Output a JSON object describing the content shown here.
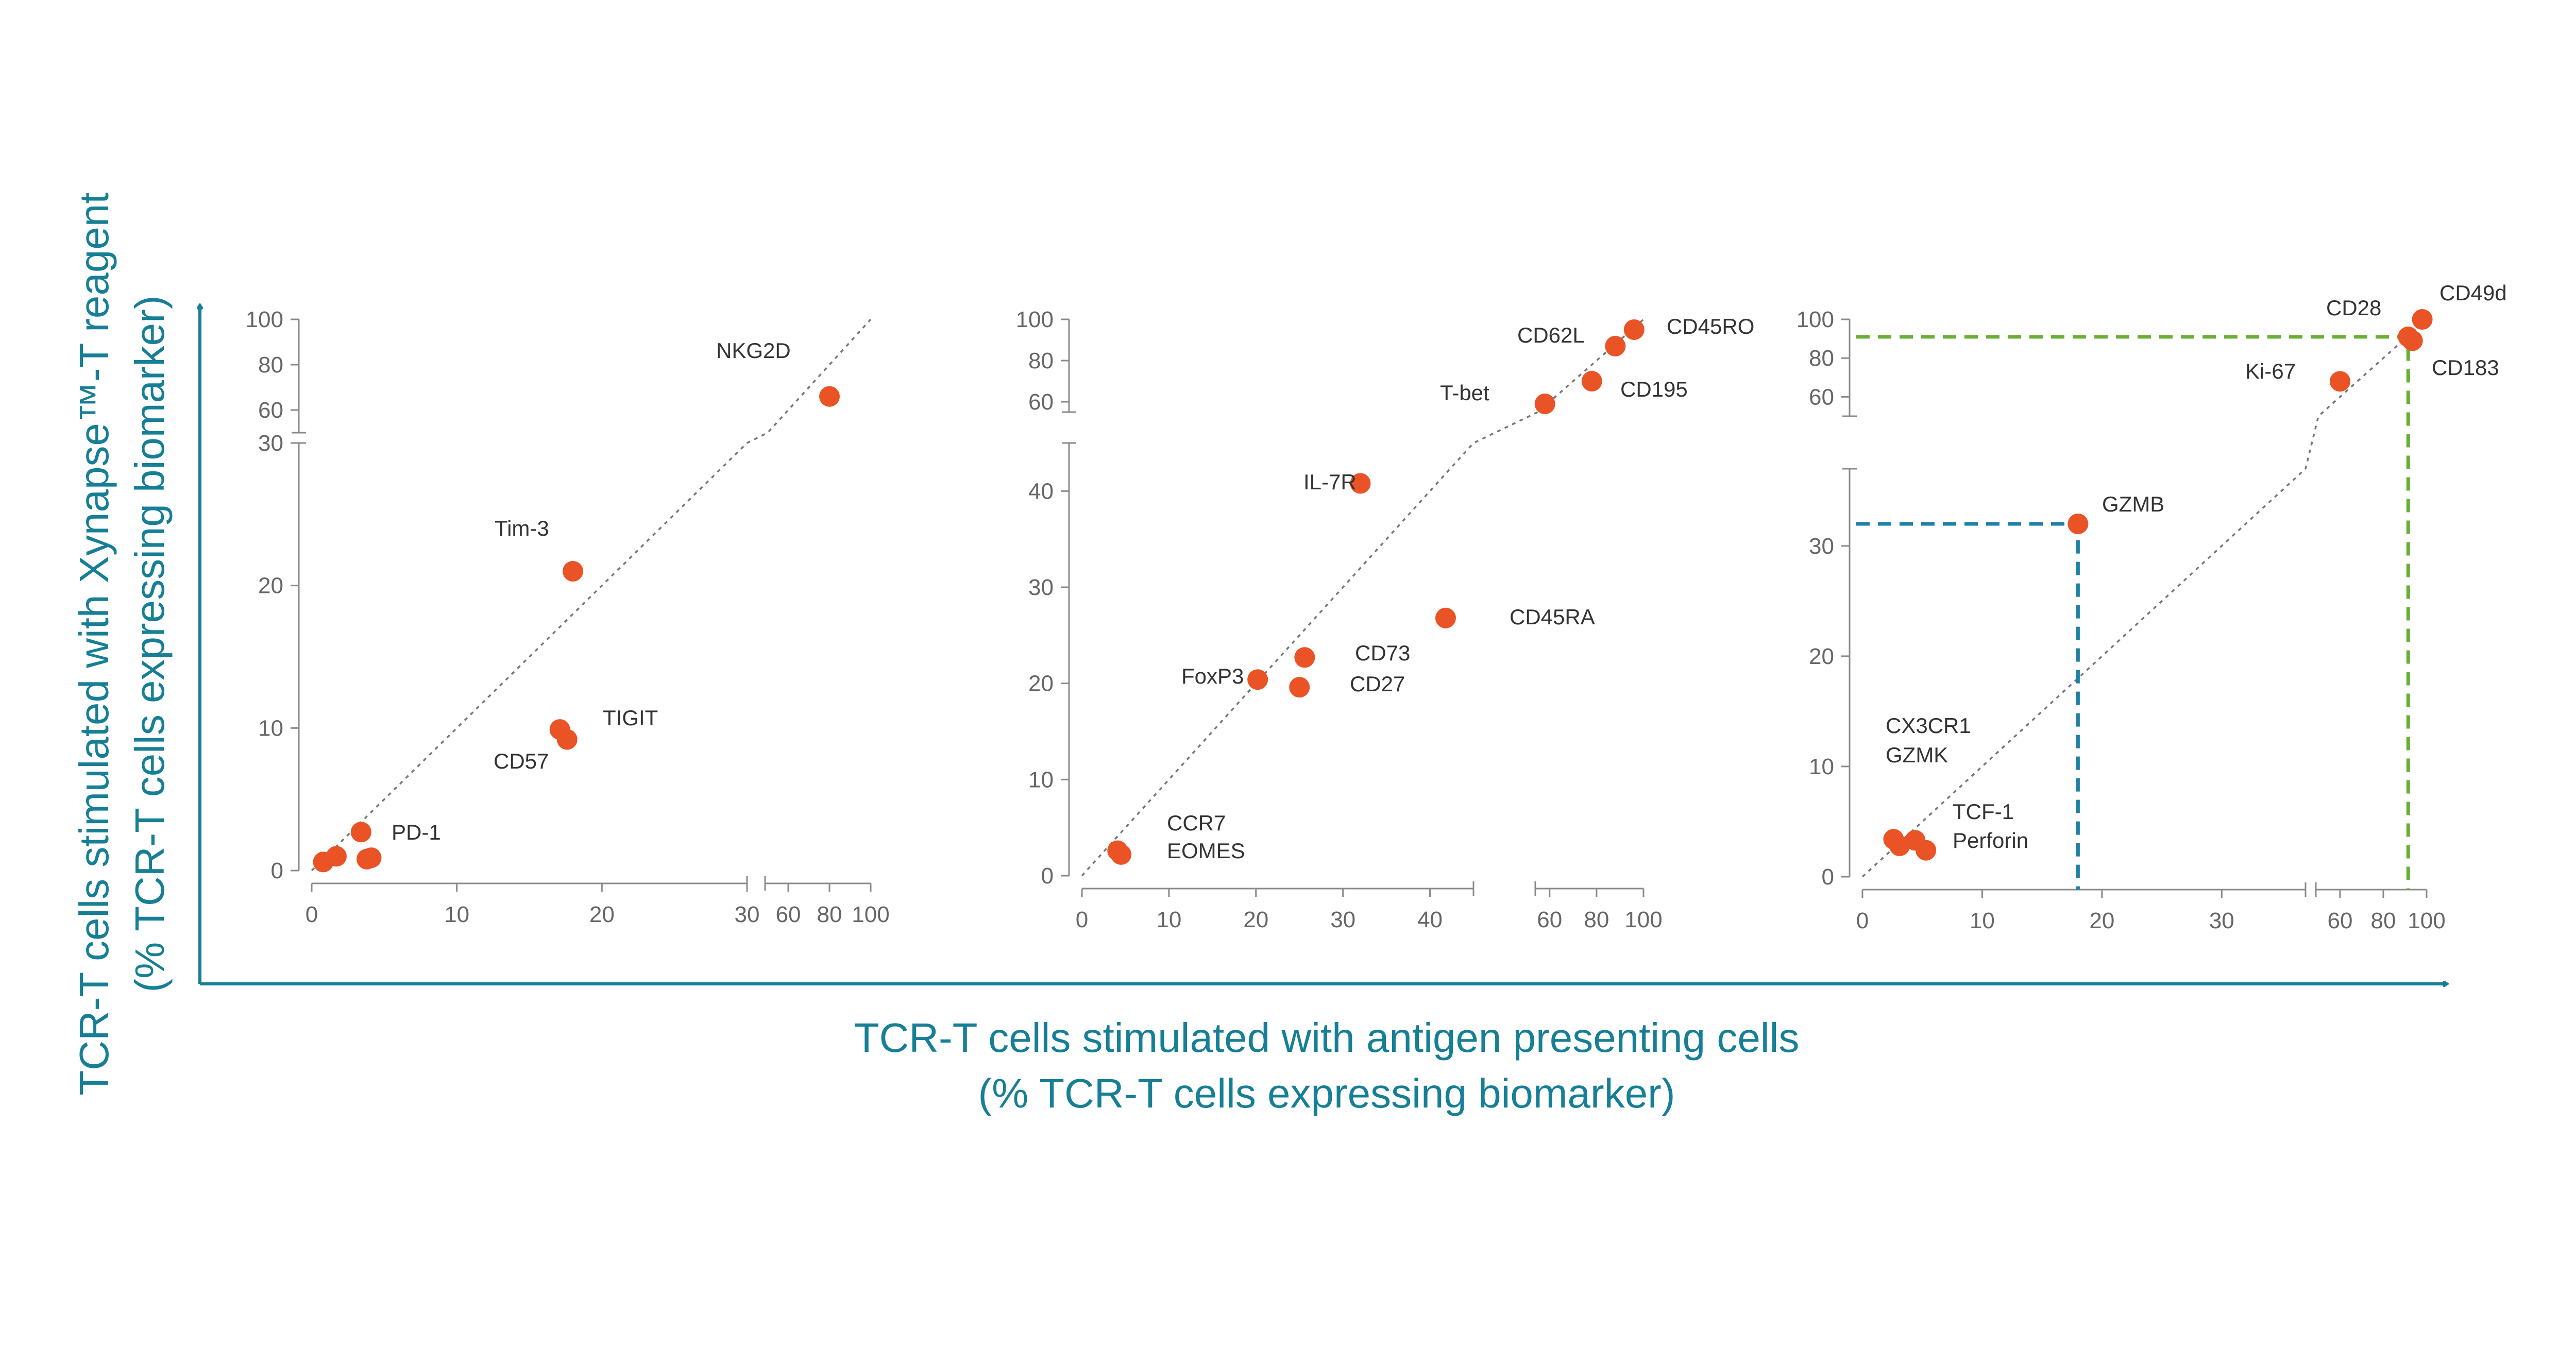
{
  "figure": {
    "y_axis_title_line1": "TCR-T cells stimulated with Xynapse™-T reagent",
    "y_axis_title_line2": "(% TCR-T cells expressing biomarker)",
    "x_axis_title_line1": "TCR-T cells stimulated with antigen presenting cells",
    "x_axis_title_line2": "(% TCR-T cells expressing biomarker)"
  },
  "colors": {
    "point": "#ea5325",
    "axis_title": "#167f96",
    "axis_line": "#8a8a8a",
    "diagonal": "#777777",
    "gzmb_guide": "#1f80a6",
    "cd28_guide": "#6aaf35"
  },
  "chart_data": [
    {
      "type": "scatter",
      "title": "",
      "diagonal": "y = x",
      "x_ticks": [
        "0",
        "10",
        "20",
        "30",
        "60",
        "80",
        "100"
      ],
      "y_ticks": [
        "0",
        "10",
        "20",
        "30",
        "60",
        "80",
        "100"
      ],
      "x_broken_axis": {
        "low": [
          0,
          30
        ],
        "high": [
          50,
          100
        ]
      },
      "y_broken_axis": {
        "low": [
          0,
          30
        ],
        "high": [
          50,
          100
        ]
      },
      "points": [
        {
          "label": "NKG2D",
          "x": 80,
          "y": 66
        },
        {
          "label": "Tim-3",
          "x": 18,
          "y": 21
        },
        {
          "label": "TIGIT",
          "x": 17.6,
          "y": 9.2
        },
        {
          "label": "CD57",
          "x": 17.1,
          "y": 9.9
        },
        {
          "label": "PD-1",
          "x": 3.4,
          "y": 2.7
        },
        {
          "label": "",
          "x": 0.8,
          "y": 0.6
        },
        {
          "label": "",
          "x": 1.7,
          "y": 1.0
        },
        {
          "label": "",
          "x": 3.8,
          "y": 0.8
        },
        {
          "label": "",
          "x": 4.1,
          "y": 0.9
        }
      ]
    },
    {
      "type": "scatter",
      "title": "",
      "diagonal": "y = x",
      "x_ticks": [
        "0",
        "10",
        "20",
        "30",
        "40",
        "60",
        "80",
        "100"
      ],
      "y_ticks": [
        "0",
        "10",
        "20",
        "30",
        "40",
        "60",
        "80",
        "100"
      ],
      "x_broken_axis": {
        "low": [
          0,
          45
        ],
        "high": [
          55,
          100
        ]
      },
      "y_broken_axis": {
        "low": [
          0,
          45
        ],
        "high": [
          55,
          100
        ]
      },
      "points": [
        {
          "label": "CD45RO",
          "x": 96,
          "y": 95
        },
        {
          "label": "CD62L",
          "x": 88,
          "y": 87
        },
        {
          "label": "CD195",
          "x": 78,
          "y": 70
        },
        {
          "label": "T-bet",
          "x": 58,
          "y": 59
        },
        {
          "label": "IL-7R",
          "x": 32,
          "y": 40.8
        },
        {
          "label": "CD45RA",
          "x": 41.8,
          "y": 26.8
        },
        {
          "label": "CD73",
          "x": 25.6,
          "y": 22.7
        },
        {
          "label": "FoxP3",
          "x": 20.2,
          "y": 20.4
        },
        {
          "label": "CD27",
          "x": 25.0,
          "y": 19.6
        },
        {
          "label": "CCR7",
          "x": 4.1,
          "y": 2.6
        },
        {
          "label": "EOMES",
          "x": 4.5,
          "y": 2.2
        }
      ]
    },
    {
      "type": "scatter",
      "title": "",
      "diagonal": "y = x",
      "x_ticks": [
        "0",
        "10",
        "20",
        "30",
        "60",
        "80",
        "100"
      ],
      "y_ticks": [
        "0",
        "10",
        "20",
        "30",
        "60",
        "80",
        "100"
      ],
      "x_broken_axis": {
        "low": [
          0,
          37
        ],
        "high": [
          50,
          100
        ]
      },
      "y_broken_axis": {
        "low": [
          0,
          37
        ],
        "high": [
          50,
          100
        ]
      },
      "guides": [
        {
          "name": "GZMB",
          "x": 18,
          "y": 32,
          "color": "#1f80a6"
        },
        {
          "name": "CD28",
          "x": 91.5,
          "y": 91,
          "color": "#6aaf35"
        }
      ],
      "points": [
        {
          "label": "CD49d",
          "x": 98,
          "y": 100
        },
        {
          "label": "CD28",
          "x": 91.5,
          "y": 91
        },
        {
          "label": "CD183",
          "x": 93.5,
          "y": 89
        },
        {
          "label": "Ki-67",
          "x": 60,
          "y": 68
        },
        {
          "label": "GZMB",
          "x": 18,
          "y": 32
        },
        {
          "label": "CX3CR1",
          "x": 2.6,
          "y": 3.4
        },
        {
          "label": "GZMK",
          "x": 3.1,
          "y": 2.8
        },
        {
          "label": "TCF-1",
          "x": 4.4,
          "y": 3.3
        },
        {
          "label": "Perforin",
          "x": 5.3,
          "y": 2.4
        }
      ]
    }
  ]
}
